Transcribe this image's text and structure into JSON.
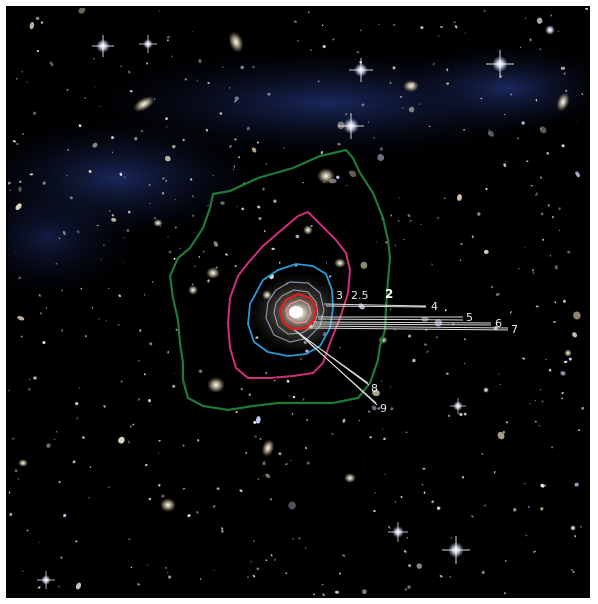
{
  "image": {
    "kind": "astronomical color image of a galaxy cluster with overlaid contours",
    "colors": {
      "background": "#000000",
      "outer_contour": "#1f7a3a",
      "middle_contour": "#d0307a",
      "inner_contour": "#2a9ad8",
      "core_contour": "#e02020",
      "leader_lines": "#e0e0e0",
      "diffuse_glow": "#1a2a6a"
    }
  },
  "labels": {
    "l2": "2",
    "l2_5": "2.5",
    "l3": "3",
    "l4": "4",
    "l5": "5",
    "l6": "6",
    "l7": "7",
    "l8": "8",
    "l9": "9"
  }
}
